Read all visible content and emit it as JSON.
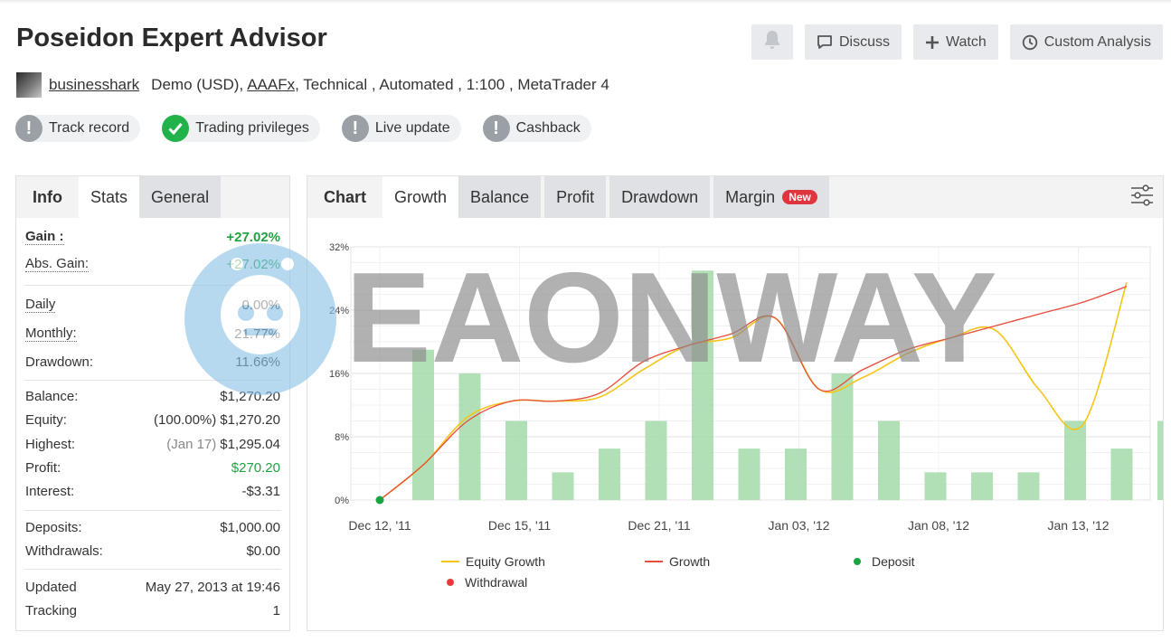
{
  "header": {
    "title": "Poseidon Expert Advisor",
    "actions": {
      "discuss": "Discuss",
      "watch": "Watch",
      "custom_analysis": "Custom Analysis"
    }
  },
  "meta": {
    "user": "businesshark",
    "account_type": "Demo (USD),",
    "broker": "AAAFx",
    "details": ", Technical , Automated , 1:100 , MetaTrader 4"
  },
  "badges": [
    {
      "label": "Track record",
      "status": "warning"
    },
    {
      "label": "Trading privileges",
      "status": "ok"
    },
    {
      "label": "Live update",
      "status": "warning"
    },
    {
      "label": "Cashback",
      "status": "warning"
    }
  ],
  "left_tabs": {
    "info": "Info",
    "stats": "Stats",
    "general": "General"
  },
  "stats": {
    "gain": {
      "label": "Gain :",
      "value": "+27.02%"
    },
    "abs_gain": {
      "label": "Abs. Gain:",
      "value": "+27.02%"
    },
    "daily": {
      "label": "Daily",
      "value": "0.00%"
    },
    "monthly": {
      "label": "Monthly:",
      "value": "21.77%"
    },
    "drawdown": {
      "label": "Drawdown:",
      "value": "11.66%"
    },
    "balance": {
      "label": "Balance:",
      "value": "$1,270.20"
    },
    "equity": {
      "label": "Equity:",
      "pct": "(100.00%)",
      "value": "$1,270.20"
    },
    "highest": {
      "label": "Highest:",
      "date": "(Jan 17)",
      "value": "$1,295.04"
    },
    "profit": {
      "label": "Profit:",
      "value": "$270.20"
    },
    "interest": {
      "label": "Interest:",
      "value": "-$3.31"
    },
    "deposits": {
      "label": "Deposits:",
      "value": "$1,000.00"
    },
    "withdrawals": {
      "label": "Withdrawals:",
      "value": "$0.00"
    },
    "updated": {
      "label": "Updated",
      "value": "May 27, 2013 at 19:46"
    },
    "tracking": {
      "label": "Tracking",
      "value": "1"
    }
  },
  "chart_tabs": {
    "label": "Chart",
    "growth": "Growth",
    "balance": "Balance",
    "profit": "Profit",
    "drawdown": "Drawdown",
    "margin": "Margin",
    "new_badge": "New"
  },
  "watermark": "EAONWAY",
  "colors": {
    "equity": "#f5c518",
    "growth": "#e74c3c",
    "deposit": "#1aa442",
    "withdrawal": "#e83a3a",
    "bars": "#a8dcae",
    "positive": "#1fa33f"
  },
  "chart_data": {
    "type": "line",
    "x_ticks": [
      "Dec 12, '11",
      "Dec 15, '11",
      "Dec 21, '11",
      "Jan 03, '12",
      "Jan 08, '12",
      "Jan 13, '12"
    ],
    "ylim": [
      0,
      32
    ],
    "y_ticks": [
      "0%",
      "8%",
      "16%",
      "24%",
      "32%"
    ],
    "grid": true,
    "legend": [
      "Equity Growth",
      "Growth",
      "Deposit",
      "Withdrawal"
    ],
    "legend_position": "bottom",
    "bars": [
      19,
      16,
      10,
      3.5,
      6.5,
      10,
      29,
      6.5,
      6.5,
      16,
      10,
      3.5,
      3.5,
      3.5,
      10,
      6.5,
      10
    ],
    "series": [
      {
        "name": "Equity Growth",
        "values": [
          0,
          4.5,
          10.5,
          12.5,
          12.5,
          13,
          16.5,
          19.5,
          20.5,
          23,
          14,
          15.5,
          18.5,
          20.5,
          21.5,
          14,
          9.5,
          27.5
        ]
      },
      {
        "name": "Growth",
        "values": [
          0,
          4.5,
          10,
          12.5,
          12.5,
          13.5,
          17.5,
          19.5,
          21,
          23,
          14,
          16.5,
          19,
          20.5,
          22,
          23.5,
          25,
          27
        ]
      }
    ],
    "deposit": {
      "x_index": 0,
      "y": 0
    }
  }
}
